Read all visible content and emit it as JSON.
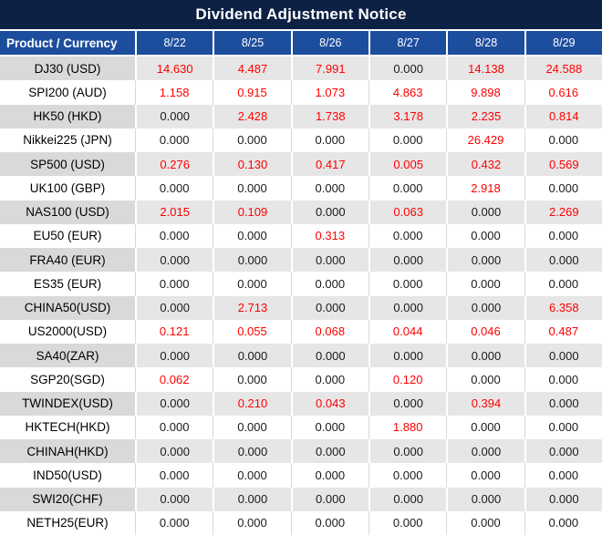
{
  "title": "Dividend Adjustment Notice",
  "table": {
    "header": {
      "product_label": "Product / Currency",
      "dates": [
        "8/22",
        "8/25",
        "8/26",
        "8/27",
        "8/28",
        "8/29"
      ]
    },
    "rows": [
      {
        "product": "DJ30 (USD)",
        "values": [
          "14.630",
          "4.487",
          "7.991",
          "0.000",
          "14.138",
          "24.588"
        ]
      },
      {
        "product": "SPI200 (AUD)",
        "values": [
          "1.158",
          "0.915",
          "1.073",
          "4.863",
          "9.898",
          "0.616"
        ]
      },
      {
        "product": "HK50 (HKD)",
        "values": [
          "0.000",
          "2.428",
          "1.738",
          "3.178",
          "2.235",
          "0.814"
        ]
      },
      {
        "product": "Nikkei225 (JPN)",
        "values": [
          "0.000",
          "0.000",
          "0.000",
          "0.000",
          "26.429",
          "0.000"
        ]
      },
      {
        "product": "SP500 (USD)",
        "values": [
          "0.276",
          "0.130",
          "0.417",
          "0.005",
          "0.432",
          "0.569"
        ]
      },
      {
        "product": "UK100 (GBP)",
        "values": [
          "0.000",
          "0.000",
          "0.000",
          "0.000",
          "2.918",
          "0.000"
        ]
      },
      {
        "product": "NAS100 (USD)",
        "values": [
          "2.015",
          "0.109",
          "0.000",
          "0.063",
          "0.000",
          "2.269"
        ]
      },
      {
        "product": "EU50 (EUR)",
        "values": [
          "0.000",
          "0.000",
          "0.313",
          "0.000",
          "0.000",
          "0.000"
        ]
      },
      {
        "product": "FRA40 (EUR)",
        "values": [
          "0.000",
          "0.000",
          "0.000",
          "0.000",
          "0.000",
          "0.000"
        ]
      },
      {
        "product": "ES35 (EUR)",
        "values": [
          "0.000",
          "0.000",
          "0.000",
          "0.000",
          "0.000",
          "0.000"
        ]
      },
      {
        "product": "CHINA50(USD)",
        "values": [
          "0.000",
          "2.713",
          "0.000",
          "0.000",
          "0.000",
          "6.358"
        ]
      },
      {
        "product": "US2000(USD)",
        "values": [
          "0.121",
          "0.055",
          "0.068",
          "0.044",
          "0.046",
          "0.487"
        ]
      },
      {
        "product": "SA40(ZAR)",
        "values": [
          "0.000",
          "0.000",
          "0.000",
          "0.000",
          "0.000",
          "0.000"
        ]
      },
      {
        "product": "SGP20(SGD)",
        "values": [
          "0.062",
          "0.000",
          "0.000",
          "0.120",
          "0.000",
          "0.000"
        ]
      },
      {
        "product": "TWINDEX(USD)",
        "values": [
          "0.000",
          "0.210",
          "0.043",
          "0.000",
          "0.394",
          "0.000"
        ]
      },
      {
        "product": "HKTECH(HKD)",
        "values": [
          "0.000",
          "0.000",
          "0.000",
          "1.880",
          "0.000",
          "0.000"
        ]
      },
      {
        "product": "CHINAH(HKD)",
        "values": [
          "0.000",
          "0.000",
          "0.000",
          "0.000",
          "0.000",
          "0.000"
        ]
      },
      {
        "product": "IND50(USD)",
        "values": [
          "0.000",
          "0.000",
          "0.000",
          "0.000",
          "0.000",
          "0.000"
        ]
      },
      {
        "product": "SWI20(CHF)",
        "values": [
          "0.000",
          "0.000",
          "0.000",
          "0.000",
          "0.000",
          "0.000"
        ]
      },
      {
        "product": "NETH25(EUR)",
        "values": [
          "0.000",
          "0.000",
          "0.000",
          "0.000",
          "0.000",
          "0.000"
        ]
      }
    ]
  },
  "colors": {
    "title_bg": "#0d2145",
    "header_bg": "#1d4e9e",
    "header_text": "#ffffff",
    "row_gray_label": "#d9d9d9",
    "row_gray_cell": "#e7e6e6",
    "row_separator": "#d9d9d9",
    "value_red": "#fe0000",
    "value_black": "#1a1a1a"
  }
}
